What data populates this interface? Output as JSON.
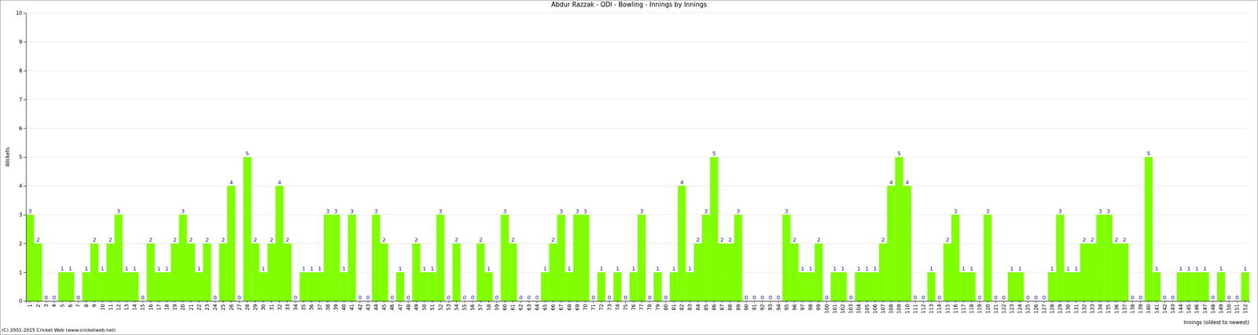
{
  "chart_data": {
    "type": "bar",
    "title": "Abdur Razzak - ODI - Bowling - Innings by Innings",
    "x_label": "Innings (oldest to newest)",
    "y_label": "Wickets",
    "annotations": [
      "(C) 2001-2015 Cricket Web (www.cricketweb.net)"
    ],
    "categories": [
      "1",
      "2",
      "3",
      "4",
      "5",
      "6",
      "7",
      "8",
      "9",
      "10",
      "11",
      "12",
      "13",
      "14",
      "15",
      "16",
      "17",
      "18",
      "19",
      "20",
      "21",
      "22",
      "23",
      "24",
      "25",
      "26",
      "27",
      "28",
      "29",
      "30",
      "31",
      "32",
      "33",
      "34",
      "35",
      "36",
      "37",
      "38",
      "39",
      "40",
      "41",
      "42",
      "43",
      "44",
      "45",
      "46",
      "47",
      "48",
      "49",
      "50",
      "51",
      "52",
      "53",
      "54",
      "55",
      "56",
      "57",
      "58",
      "59",
      "60",
      "61",
      "62",
      "63",
      "64",
      "65",
      "66",
      "67",
      "68",
      "69",
      "70",
      "71",
      "72",
      "73",
      "74",
      "75",
      "76",
      "77",
      "78",
      "79",
      "80",
      "81",
      "82",
      "83",
      "84",
      "85",
      "86",
      "87",
      "88",
      "89",
      "90",
      "91",
      "92",
      "93",
      "94",
      "95",
      "96",
      "97",
      "98",
      "99",
      "100",
      "101",
      "102",
      "103",
      "104",
      "105",
      "106",
      "107",
      "108",
      "109",
      "110",
      "111",
      "112",
      "113",
      "114",
      "115",
      "116",
      "117",
      "118",
      "119",
      "120",
      "121",
      "122",
      "123",
      "124",
      "125",
      "126",
      "127",
      "128",
      "129",
      "130",
      "131",
      "132",
      "133",
      "134",
      "135",
      "136",
      "137",
      "138",
      "139",
      "140",
      "141",
      "142",
      "143",
      "144",
      "145",
      "146",
      "147",
      "148",
      "149",
      "150",
      "151",
      "152"
    ],
    "values": [
      3,
      2,
      0,
      0,
      1,
      1,
      0,
      1,
      2,
      1,
      2,
      3,
      1,
      1,
      0,
      2,
      1,
      1,
      2,
      3,
      2,
      1,
      2,
      0,
      2,
      4,
      0,
      5,
      2,
      1,
      2,
      4,
      2,
      0,
      1,
      1,
      1,
      3,
      3,
      1,
      3,
      0,
      0,
      3,
      2,
      0,
      1,
      0,
      2,
      1,
      1,
      3,
      0,
      2,
      0,
      0,
      2,
      1,
      0,
      3,
      2,
      0,
      0,
      0,
      1,
      2,
      3,
      1,
      3,
      3,
      0,
      1,
      0,
      1,
      0,
      1,
      3,
      0,
      1,
      0,
      1,
      4,
      1,
      2,
      3,
      5,
      2,
      2,
      3,
      0,
      0,
      0,
      0,
      0,
      3,
      2,
      1,
      1,
      2,
      0,
      1,
      1,
      0,
      1,
      1,
      1,
      2,
      4,
      5,
      4,
      0,
      0,
      1,
      0,
      2,
      3,
      1,
      1,
      0,
      3,
      0,
      0,
      1,
      1,
      0,
      0,
      0,
      1,
      3,
      1,
      1,
      2,
      2,
      3,
      3,
      2,
      2,
      0,
      0,
      5,
      1,
      0,
      0,
      1,
      1,
      1,
      1,
      0,
      1,
      0,
      0,
      1
    ],
    "color": "#80ff00",
    "ylim": [
      0,
      10
    ],
    "yticks": [
      0,
      1,
      2,
      3,
      4,
      5,
      6,
      7,
      8,
      9,
      10
    ],
    "grid": true,
    "data_labels": true
  }
}
